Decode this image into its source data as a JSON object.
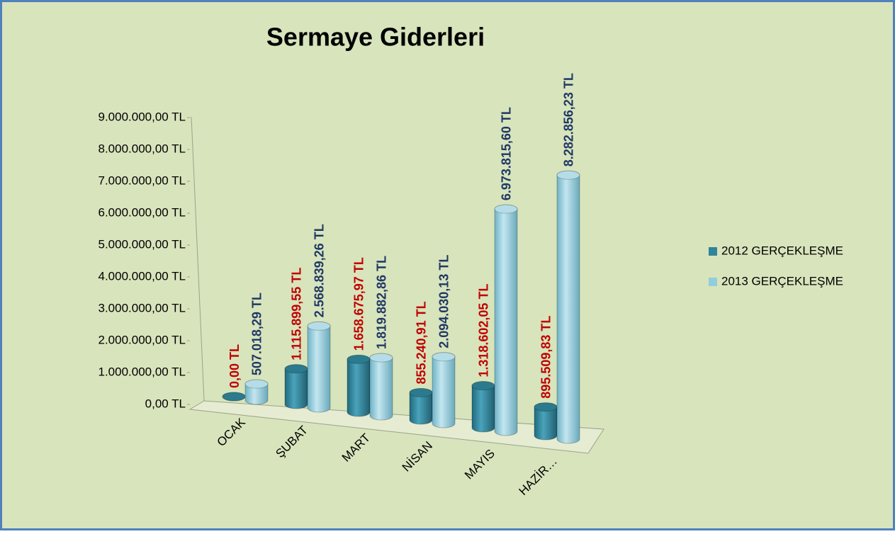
{
  "chart_data": {
    "type": "bar3d",
    "title": "Sermaye Giderleri",
    "categories": [
      "OCAK",
      "ŞUBAT",
      "MART",
      "NİSAN",
      "MAYIS",
      "HAZİR…"
    ],
    "series": [
      {
        "name": "2012 GERÇEKLEŞME",
        "color": "#31849b",
        "label_color": "#c00000",
        "values": [
          0,
          1115899.55,
          1658675.97,
          855240.91,
          1318602.05,
          895509.83
        ],
        "value_labels": [
          "0,00 TL",
          "1.115.899,55 TL",
          "1.658.675,97 TL",
          "855.240,91 TL",
          "1.318.602,05 TL",
          "895.509,83 TL"
        ]
      },
      {
        "name": "2013 GERÇEKLEŞME",
        "color": "#92cddc",
        "label_color": "#1f3864",
        "values": [
          507018.29,
          2568839.26,
          1819882.86,
          2094030.13,
          6973815.6,
          8282856.23
        ],
        "value_labels": [
          "507.018,29 TL",
          "2.568.839,26 TL",
          "1.819.882,86 TL",
          "2.094.030,13 TL",
          "6.973.815,60 TL",
          "8.282.856,23 TL"
        ]
      }
    ],
    "ylim": [
      0,
      9000000
    ],
    "yticks": [
      {
        "value": 0,
        "label": "0,00 TL"
      },
      {
        "value": 1000000,
        "label": "1.000.000,00 TL"
      },
      {
        "value": 2000000,
        "label": "2.000.000,00 TL"
      },
      {
        "value": 3000000,
        "label": "3.000.000,00 TL"
      },
      {
        "value": 4000000,
        "label": "4.000.000,00 TL"
      },
      {
        "value": 5000000,
        "label": "5.000.000,00 TL"
      },
      {
        "value": 6000000,
        "label": "6.000.000,00 TL"
      },
      {
        "value": 7000000,
        "label": "7.000.000,00 TL"
      },
      {
        "value": 8000000,
        "label": "8.000.000,00 TL"
      },
      {
        "value": 9000000,
        "label": "9.000.000,00 TL"
      }
    ],
    "legend": "right"
  }
}
